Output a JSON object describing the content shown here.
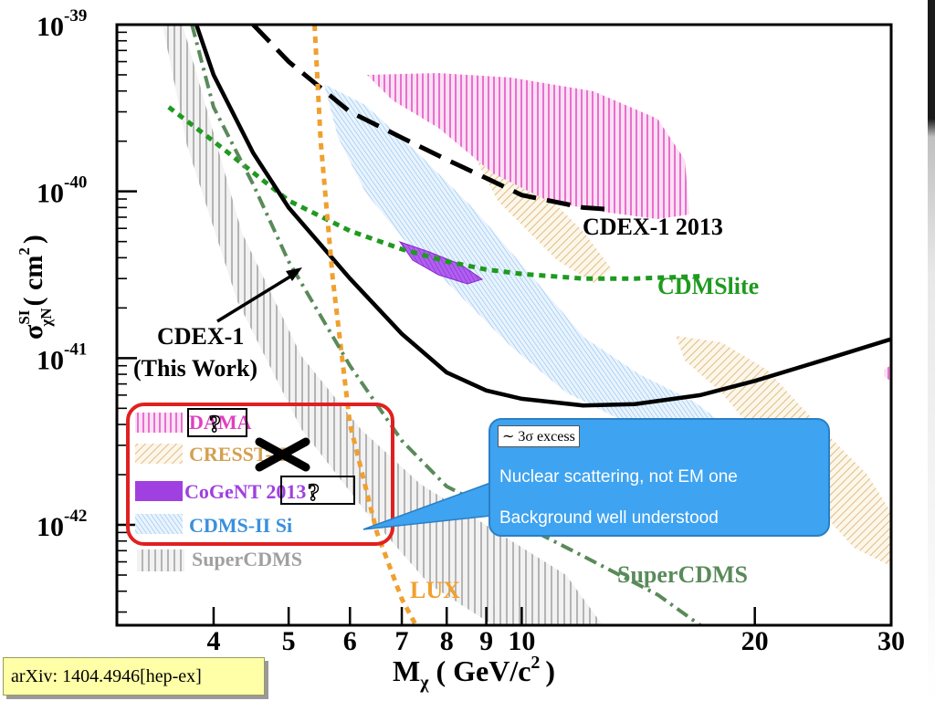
{
  "chart_data": {
    "type": "line",
    "x_scale": "log",
    "y_scale": "log",
    "xlim": [
      3,
      30
    ],
    "ylim": [
      2.5e-43,
      1e-39
    ],
    "x_ticks": [
      {
        "value": 4,
        "label": "4"
      },
      {
        "value": 5,
        "label": "5"
      },
      {
        "value": 6,
        "label": "6"
      },
      {
        "value": 7,
        "label": "7"
      },
      {
        "value": 8,
        "label": "8"
      },
      {
        "value": 9,
        "label": "9"
      },
      {
        "value": 10,
        "label": "10"
      },
      {
        "value": 20,
        "label": "20"
      },
      {
        "value": 30,
        "label": "30"
      }
    ],
    "y_ticks": [
      {
        "value": 1e-39,
        "base": "10",
        "exp": "-39"
      },
      {
        "value": 1e-40,
        "base": "10",
        "exp": "-40"
      },
      {
        "value": 1e-41,
        "base": "10",
        "exp": "-41"
      },
      {
        "value": 1e-42,
        "base": "10",
        "exp": "-42"
      }
    ],
    "xlabel": {
      "main": "M",
      "sub": "χ",
      "rest": "( GeV/c",
      "sup": "2",
      "close": ")"
    },
    "ylabel": {
      "main": "σ",
      "sup": "SI",
      "sub": "χN",
      "rest": "( cm",
      "sup2": "2",
      "close": ")"
    },
    "series": [
      {
        "name": "CDEX-1 2013",
        "style": "dashed",
        "color": "#000000",
        "points": [
          [
            4.5,
            1e-39
          ],
          [
            5.0,
            6e-40
          ],
          [
            6.0,
            3e-40
          ],
          [
            7.0,
            2.1e-40
          ],
          [
            8.0,
            1.55e-40
          ],
          [
            9.0,
            1.2e-40
          ],
          [
            10.0,
            9.5e-41
          ],
          [
            12.0,
            8e-41
          ],
          [
            13.0,
            7.8e-41
          ]
        ]
      },
      {
        "name": "CDMSlite",
        "style": "dotted",
        "color": "#1f9a1f",
        "points": [
          [
            3.5,
            3.2e-40
          ],
          [
            4.0,
            2e-40
          ],
          [
            5.0,
            8.8e-41
          ],
          [
            6.0,
            5.8e-41
          ],
          [
            7.0,
            4.5e-41
          ],
          [
            8.0,
            3.8e-41
          ],
          [
            9.0,
            3.4e-41
          ],
          [
            10.0,
            3.2e-41
          ],
          [
            12.0,
            3e-41
          ],
          [
            14.0,
            3e-41
          ],
          [
            17.0,
            3.1e-41
          ]
        ]
      },
      {
        "name": "CDEX-1 (This Work)",
        "style": "solid",
        "color": "#000000",
        "points": [
          [
            3.8,
            1e-39
          ],
          [
            4.0,
            5e-40
          ],
          [
            4.5,
            1.7e-40
          ],
          [
            5.0,
            8e-41
          ],
          [
            6.0,
            3e-41
          ],
          [
            7.0,
            1.4e-41
          ],
          [
            8.0,
            8.2e-42
          ],
          [
            9.0,
            6.4e-42
          ],
          [
            10.0,
            5.7e-42
          ],
          [
            12.0,
            5.2e-42
          ],
          [
            14.0,
            5.3e-42
          ],
          [
            17.0,
            6e-42
          ],
          [
            20.0,
            7.3e-42
          ],
          [
            25.0,
            1e-41
          ],
          [
            30.0,
            1.3e-41
          ]
        ]
      },
      {
        "name": "LUX",
        "style": "dotted",
        "color": "#f0a030",
        "points": [
          [
            5.4,
            1e-39
          ],
          [
            5.5,
            2e-40
          ],
          [
            5.7,
            3e-41
          ],
          [
            6.0,
            4e-42
          ],
          [
            6.5,
            9e-43
          ],
          [
            7.0,
            3.6e-43
          ],
          [
            7.3,
            2.5e-43
          ]
        ]
      },
      {
        "name": "SuperCDMS",
        "style": "dash-dot",
        "color": "#5a8a5a",
        "points": [
          [
            3.75,
            1e-39
          ],
          [
            4.0,
            3.2e-40
          ],
          [
            4.5,
            1.1e-40
          ],
          [
            5.0,
            3.8e-41
          ],
          [
            6.0,
            9e-42
          ],
          [
            7.0,
            3.2e-42
          ],
          [
            8.0,
            1.7e-42
          ],
          [
            10.0,
            1e-42
          ],
          [
            12.0,
            6.5e-43
          ],
          [
            15.0,
            3.8e-43
          ],
          [
            17.0,
            2.5e-43
          ]
        ]
      }
    ],
    "curve_labels": [
      {
        "text": "CDEX-1 2013",
        "color": "#000000"
      },
      {
        "text": "CDMSlite",
        "color": "#1f9a1f"
      },
      {
        "text": "LUX",
        "color": "#f0a030"
      },
      {
        "text": "SuperCDMS",
        "color": "#5a8a5a"
      }
    ],
    "annotation": {
      "line1": "CDEX-1",
      "line2": "(This Work)"
    },
    "legend": {
      "placement": "bottom-left",
      "items": [
        {
          "label": "DAMA",
          "color": "#e040c0",
          "hatch": "vertical",
          "marker": "question"
        },
        {
          "label": "CRESST-II",
          "color": "#d4b06a",
          "hatch": "diagonal",
          "marker": "cross"
        },
        {
          "label": "CoGeNT 2013",
          "color": "#a040e0",
          "hatch": "solid",
          "marker": "question"
        },
        {
          "label": "CDMS-II Si",
          "color": "#6bb4ec",
          "hatch": "diagonal-fine",
          "marker": "none"
        },
        {
          "label": "SuperCDMS",
          "color": "#a0a0a0",
          "hatch": "vertical-gray",
          "marker": "none"
        }
      ]
    }
  },
  "callout": {
    "heading": "∼ 3σ excess",
    "line1": "Nuclear scattering, not EM one",
    "line2": "Background well understood",
    "color": "#3ea3f0"
  },
  "footer": {
    "arxiv": "arXiv: 1404.4946[hep-ex]"
  },
  "icons": {
    "question_mark": "?",
    "cross": "✖"
  }
}
